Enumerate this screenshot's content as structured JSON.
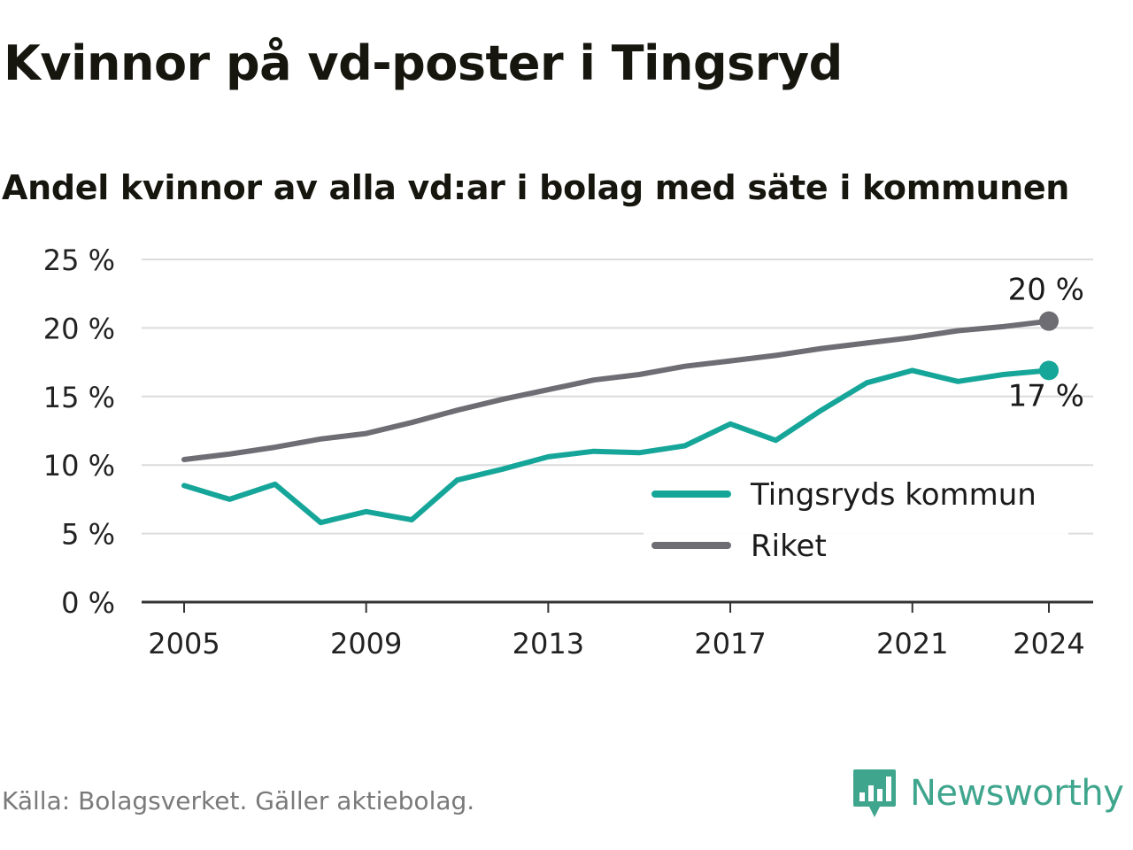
{
  "header": {
    "title": "Kvinnor på vd-poster i Tingsryd",
    "subtitle": "Andel kvinnor av alla vd:ar i bolag med säte i kommunen"
  },
  "footer": {
    "source": "Källa: Bolagsverket. Gäller aktiebolag.",
    "brand": "Newsworthy",
    "brand_icon": "bar-chart-icon",
    "brand_color": "#3fa58d"
  },
  "chart_data": {
    "type": "line",
    "title": "Kvinnor på vd-poster i Tingsryd",
    "subtitle": "Andel kvinnor av alla vd:ar i bolag med säte i kommunen",
    "x": [
      2005,
      2006,
      2007,
      2008,
      2009,
      2010,
      2011,
      2012,
      2013,
      2014,
      2015,
      2016,
      2017,
      2018,
      2019,
      2020,
      2021,
      2022,
      2023,
      2024
    ],
    "x_ticks": [
      "2005",
      "2009",
      "2013",
      "2017",
      "2021",
      "2024"
    ],
    "y_ticks": [
      "0 %",
      "5 %",
      "10 %",
      "15 %",
      "20 %",
      "25 %"
    ],
    "ylim": [
      0,
      25
    ],
    "grid": true,
    "legend_position": "bottom-right",
    "series": [
      {
        "name": "Tingsryds kommun",
        "color": "#16a699",
        "values": [
          8.5,
          7.5,
          8.6,
          5.8,
          6.6,
          6.0,
          8.9,
          9.7,
          10.6,
          11.0,
          10.9,
          11.4,
          13.0,
          11.8,
          14.0,
          16.0,
          16.9,
          16.1,
          16.6,
          16.9
        ],
        "end_label": "17 %"
      },
      {
        "name": "Riket",
        "color": "#6e6d74",
        "values": [
          10.4,
          10.8,
          11.3,
          11.9,
          12.3,
          13.1,
          14.0,
          14.8,
          15.5,
          16.2,
          16.6,
          17.2,
          17.6,
          18.0,
          18.5,
          18.9,
          19.3,
          19.8,
          20.1,
          20.5
        ],
        "end_label": "20 %"
      }
    ]
  }
}
